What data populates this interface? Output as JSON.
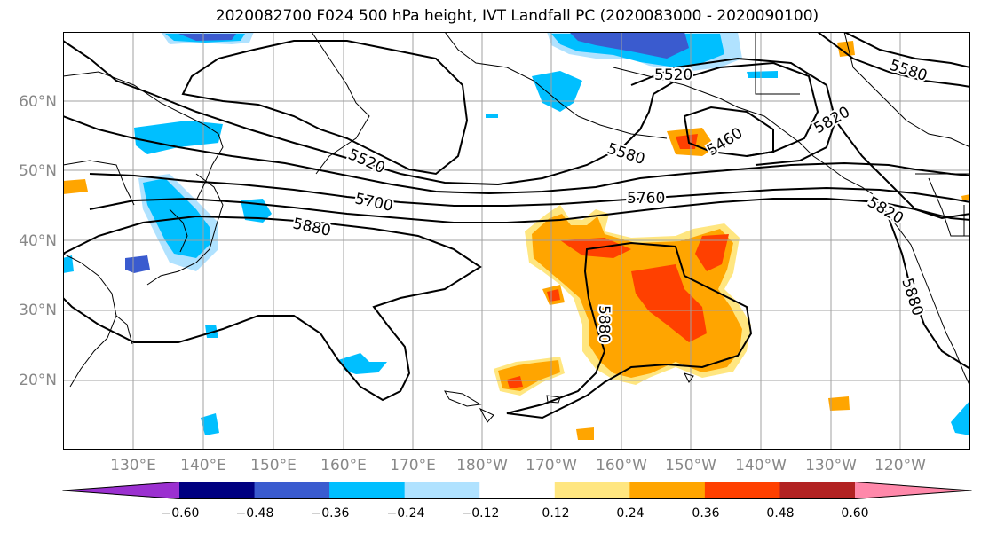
{
  "title": "2020082700 F024 500 hPa height, IVT Landfall PC (2020083000 - 2020090100)",
  "lat_labels": [
    "20°N",
    "30°N",
    "40°N",
    "50°N",
    "60°N"
  ],
  "lon_labels": [
    "130°E",
    "140°E",
    "150°E",
    "160°E",
    "170°E",
    "180°W",
    "170°W",
    "160°W",
    "150°W",
    "140°W",
    "130°W",
    "120°W"
  ],
  "contour_labels": [
    "5520",
    "5580",
    "5700",
    "5880",
    "5760",
    "5460",
    "5520",
    "5580",
    "5820",
    "5880",
    "5880",
    "5820"
  ],
  "colorbar": {
    "ticks": [
      "−0.60",
      "−0.48",
      "−0.36",
      "−0.24",
      "−0.12",
      "0.12",
      "0.24",
      "0.36",
      "0.48",
      "0.60"
    ],
    "colors": [
      "#9b30d0",
      "#000080",
      "#3a5bcf",
      "#00bfff",
      "#b0e2ff",
      "#ffffff",
      "#ffe680",
      "#ffa500",
      "#ff4000",
      "#b22222",
      "#ff88aa"
    ]
  },
  "colors": {
    "contour": "#000000",
    "grid": "#a0a0a0",
    "coast": "#000000",
    "neg_light": "#b0e2ff",
    "neg_mid": "#00bfff",
    "neg_strong": "#3a5bcf",
    "pos_light": "#ffe680",
    "pos_mid": "#ffa500",
    "pos_strong": "#ff4000"
  }
}
